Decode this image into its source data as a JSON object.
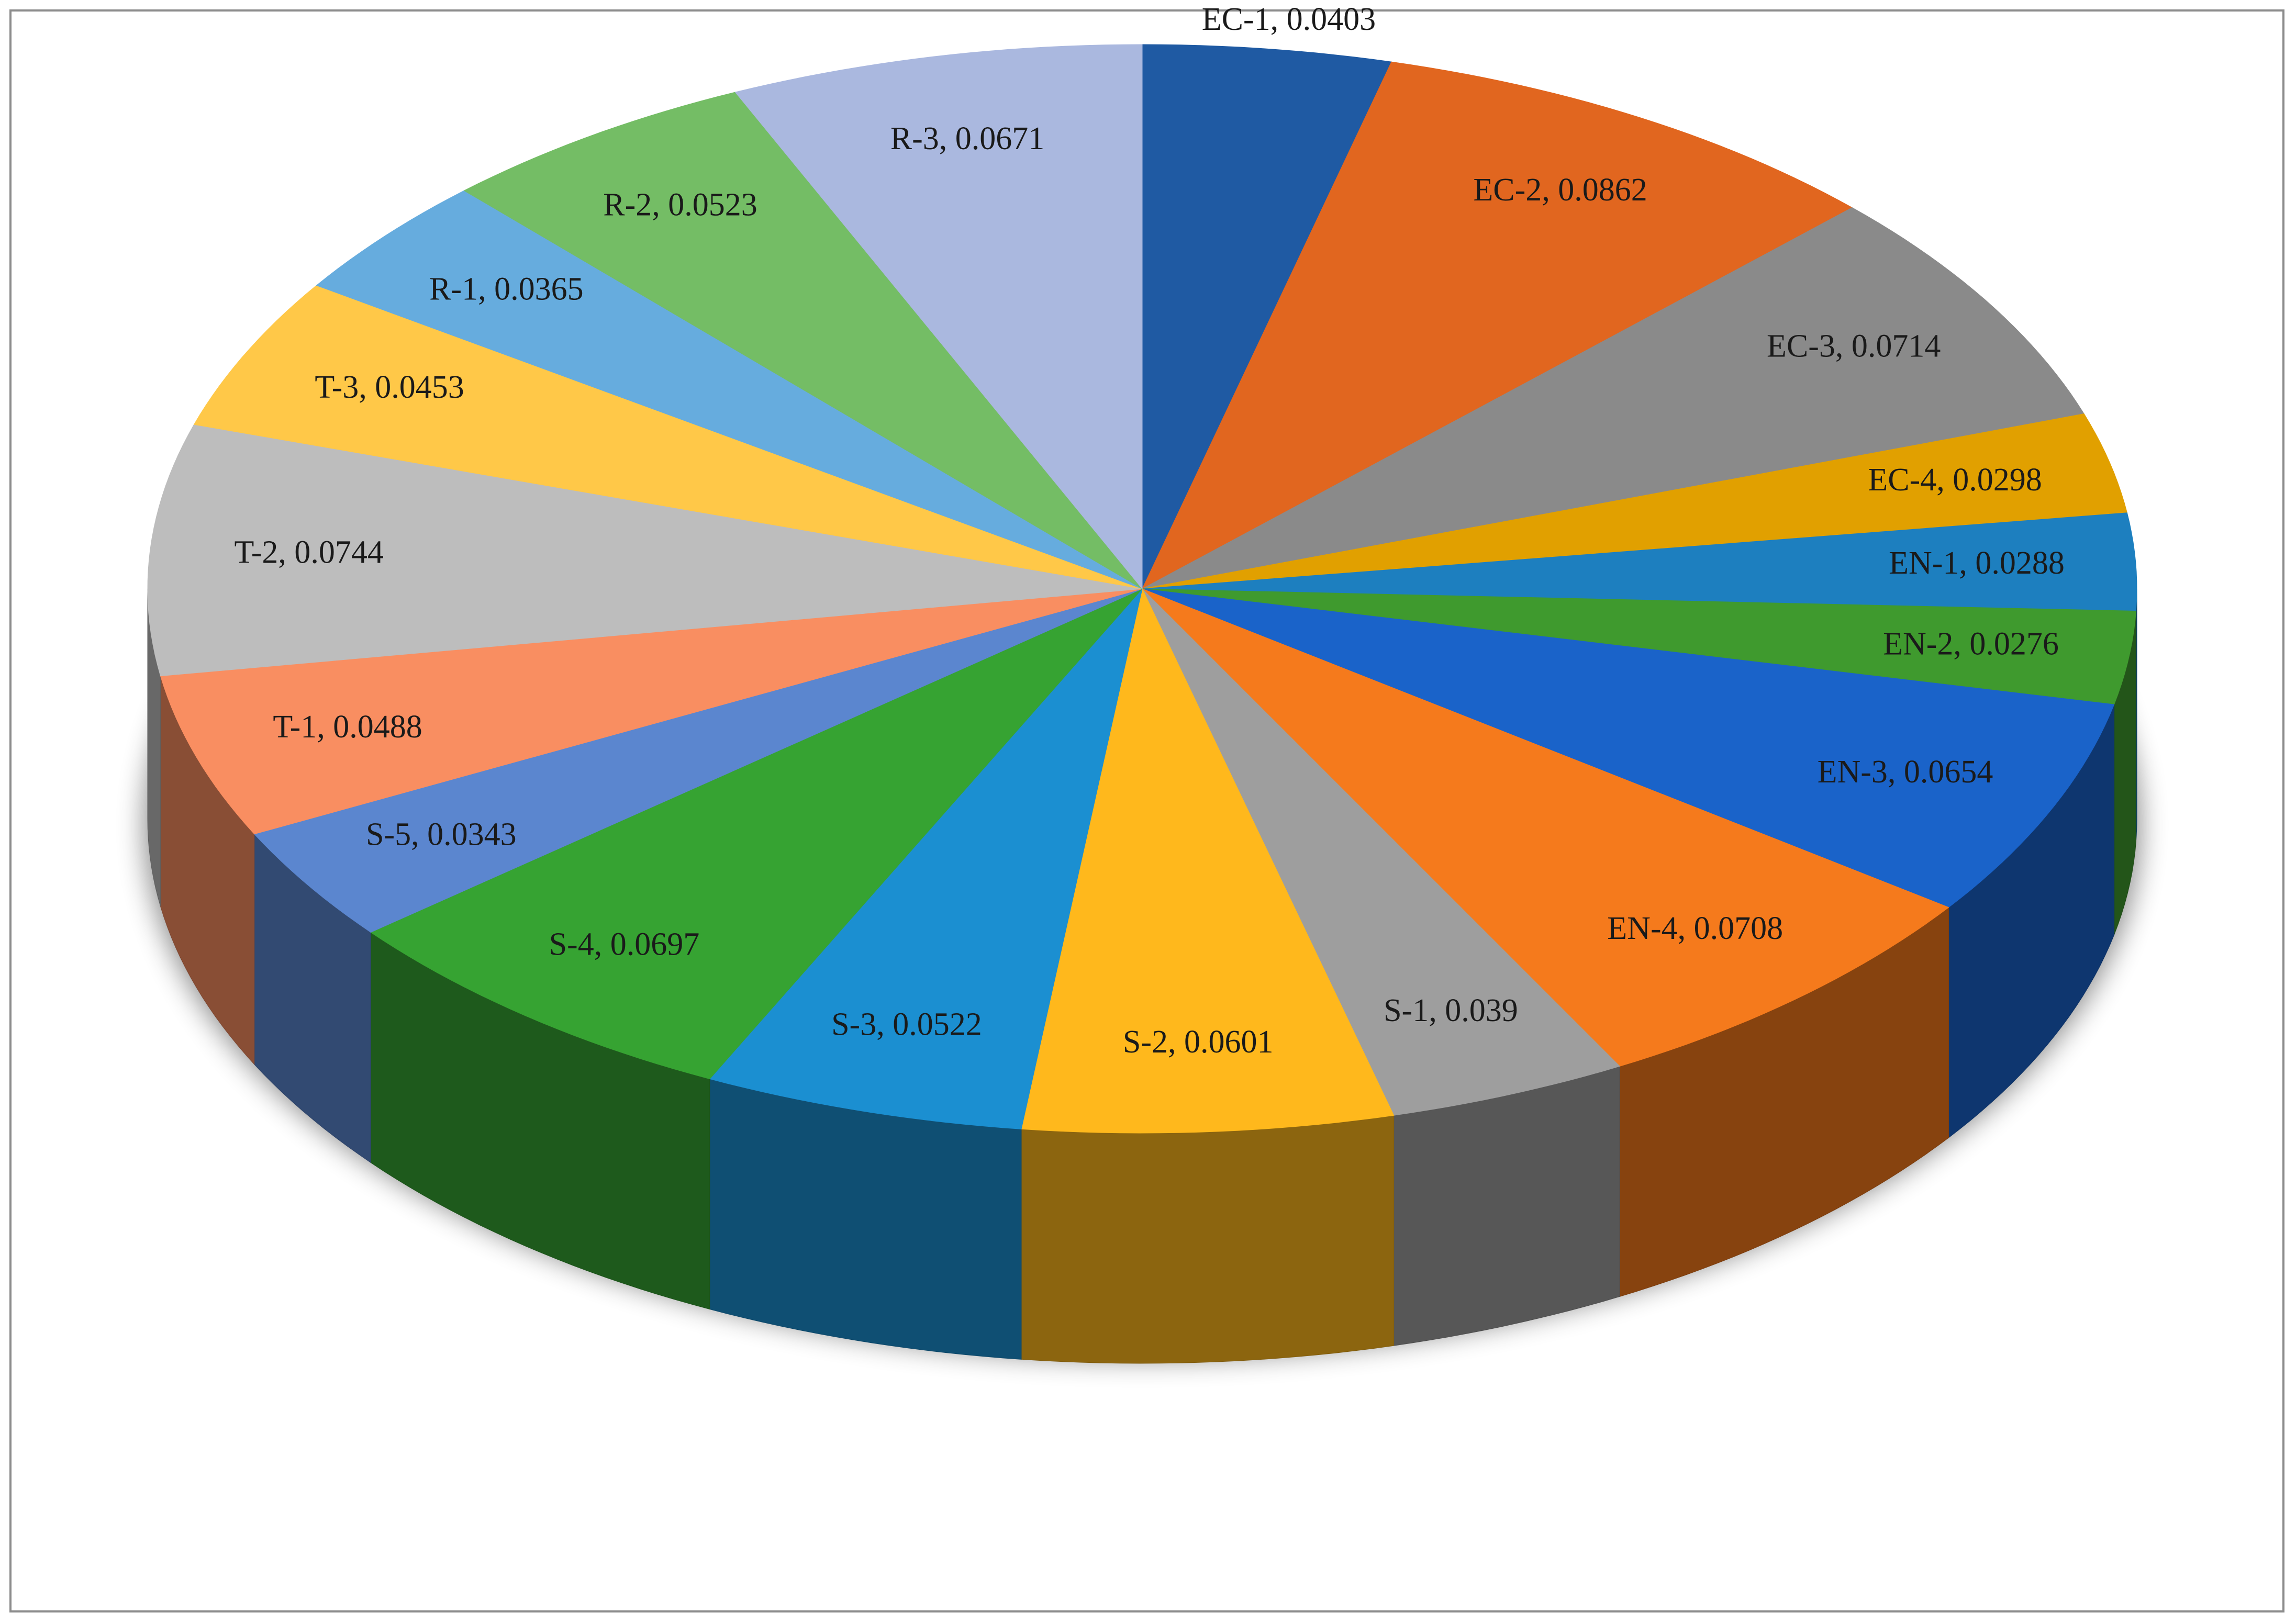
{
  "chart_data": {
    "type": "pie",
    "style": "3d",
    "title": "",
    "start": "top, clockwise",
    "legend": "none",
    "slices": [
      {
        "label": "EC-1",
        "value": 0.0403,
        "color": "#1f5aa3"
      },
      {
        "label": "EC-2",
        "value": 0.0862,
        "color": "#e1661f"
      },
      {
        "label": "EC-3",
        "value": 0.0714,
        "color": "#8a8a8a"
      },
      {
        "label": "EC-4",
        "value": 0.0298,
        "color": "#e1a000"
      },
      {
        "label": "EN-1",
        "value": 0.0288,
        "color": "#1d7fbf"
      },
      {
        "label": "EN-2",
        "value": 0.0276,
        "color": "#3f9a2e"
      },
      {
        "label": "EN-3",
        "value": 0.0654,
        "color": "#1a63c9"
      },
      {
        "label": "EN-4",
        "value": 0.0708,
        "color": "#f57a1c"
      },
      {
        "label": "S-1",
        "value": 0.039,
        "color": "#9e9e9e"
      },
      {
        "label": "S-2",
        "value": 0.0601,
        "color": "#ffb81c"
      },
      {
        "label": "S-3",
        "value": 0.0522,
        "color": "#1b8fd1"
      },
      {
        "label": "S-4",
        "value": 0.0697,
        "color": "#36a332"
      },
      {
        "label": "S-5",
        "value": 0.0343,
        "color": "#5b86cf"
      },
      {
        "label": "T-1",
        "value": 0.0488,
        "color": "#f98e61"
      },
      {
        "label": "T-2",
        "value": 0.0744,
        "color": "#bdbdbd"
      },
      {
        "label": "T-3",
        "value": 0.0453,
        "color": "#ffc848"
      },
      {
        "label": "R-1",
        "value": 0.0365,
        "color": "#66acde"
      },
      {
        "label": "R-2",
        "value": 0.0523,
        "color": "#74bd65"
      },
      {
        "label": "R-3",
        "value": 0.0671,
        "color": "#aab8df"
      }
    ]
  }
}
